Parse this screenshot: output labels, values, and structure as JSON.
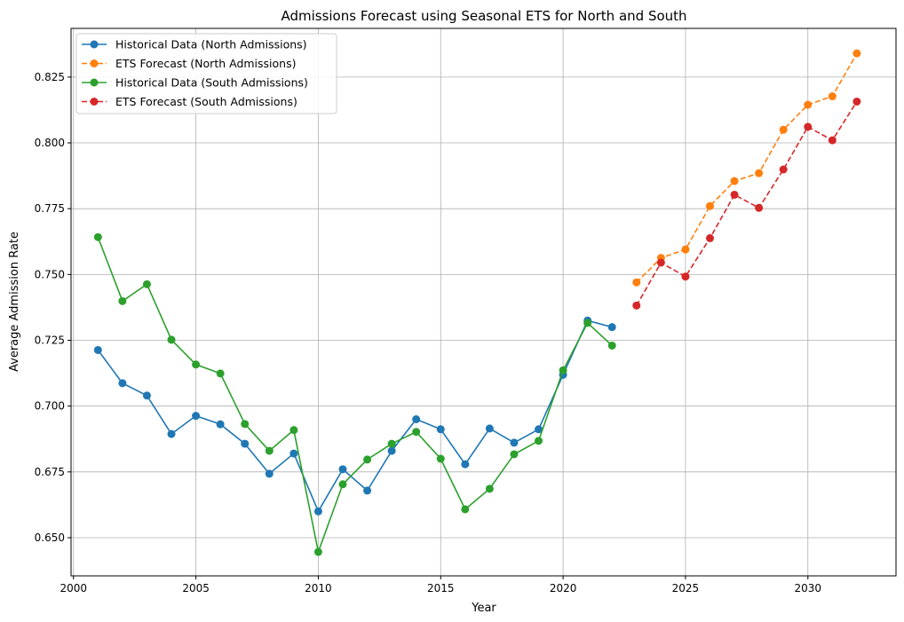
{
  "chart_data": {
    "type": "line",
    "title": "Admissions Forecast using Seasonal ETS for North and South",
    "xlabel": "Year",
    "ylabel": "Average Admission Rate",
    "xlim": [
      1999.9,
      2033.6
    ],
    "ylim": [
      0.6355,
      0.8435
    ],
    "x_ticks": [
      2000,
      2005,
      2010,
      2015,
      2020,
      2025,
      2030
    ],
    "y_ticks": [
      0.65,
      0.675,
      0.7,
      0.725,
      0.75,
      0.775,
      0.8,
      0.825
    ],
    "x_tick_labels": [
      "2000",
      "2005",
      "2010",
      "2015",
      "2020",
      "2025",
      "2030"
    ],
    "y_tick_labels": [
      "0.650",
      "0.675",
      "0.700",
      "0.725",
      "0.750",
      "0.775",
      "0.800",
      "0.825"
    ],
    "grid": true,
    "legend_position": "top-left",
    "series": [
      {
        "name": "Historical Data (North Admissions)",
        "color": "#1f77b4",
        "dashed": false,
        "x": [
          2001,
          2002,
          2003,
          2004,
          2005,
          2006,
          2007,
          2008,
          2009,
          2010,
          2011,
          2012,
          2013,
          2014,
          2015,
          2016,
          2017,
          2018,
          2019,
          2020,
          2021,
          2022
        ],
        "y": [
          0.7213,
          0.7087,
          0.704,
          0.6894,
          0.6963,
          0.6931,
          0.6857,
          0.6743,
          0.682,
          0.66,
          0.676,
          0.6679,
          0.683,
          0.695,
          0.6912,
          0.6779,
          0.6915,
          0.6861,
          0.6912,
          0.7119,
          0.7325,
          0.73
        ]
      },
      {
        "name": "ETS Forecast (North Admissions)",
        "color": "#ff7f0e",
        "dashed": true,
        "x": [
          2023,
          2024,
          2025,
          2026,
          2027,
          2028,
          2029,
          2030,
          2031,
          2032
        ],
        "y": [
          0.747,
          0.7563,
          0.7595,
          0.776,
          0.7855,
          0.7885,
          0.805,
          0.8145,
          0.8177,
          0.834
        ]
      },
      {
        "name": "Historical Data (South Admissions)",
        "color": "#2ca02c",
        "dashed": false,
        "x": [
          2001,
          2002,
          2003,
          2004,
          2005,
          2006,
          2007,
          2008,
          2009,
          2010,
          2011,
          2012,
          2013,
          2014,
          2015,
          2016,
          2017,
          2018,
          2019,
          2020,
          2021,
          2022
        ],
        "y": [
          0.7642,
          0.7399,
          0.7463,
          0.7252,
          0.7158,
          0.7124,
          0.6932,
          0.683,
          0.6909,
          0.6446,
          0.6703,
          0.6797,
          0.6857,
          0.6902,
          0.68,
          0.6608,
          0.6686,
          0.6817,
          0.6868,
          0.7136,
          0.7316,
          0.723
        ]
      },
      {
        "name": "ETS Forecast (South Admissions)",
        "color": "#d62728",
        "dashed": true,
        "x": [
          2023,
          2024,
          2025,
          2026,
          2027,
          2028,
          2029,
          2030,
          2031,
          2032
        ],
        "y": [
          0.7382,
          0.7545,
          0.7492,
          0.7638,
          0.7803,
          0.7753,
          0.7899,
          0.8061,
          0.801,
          0.8157
        ]
      }
    ]
  }
}
